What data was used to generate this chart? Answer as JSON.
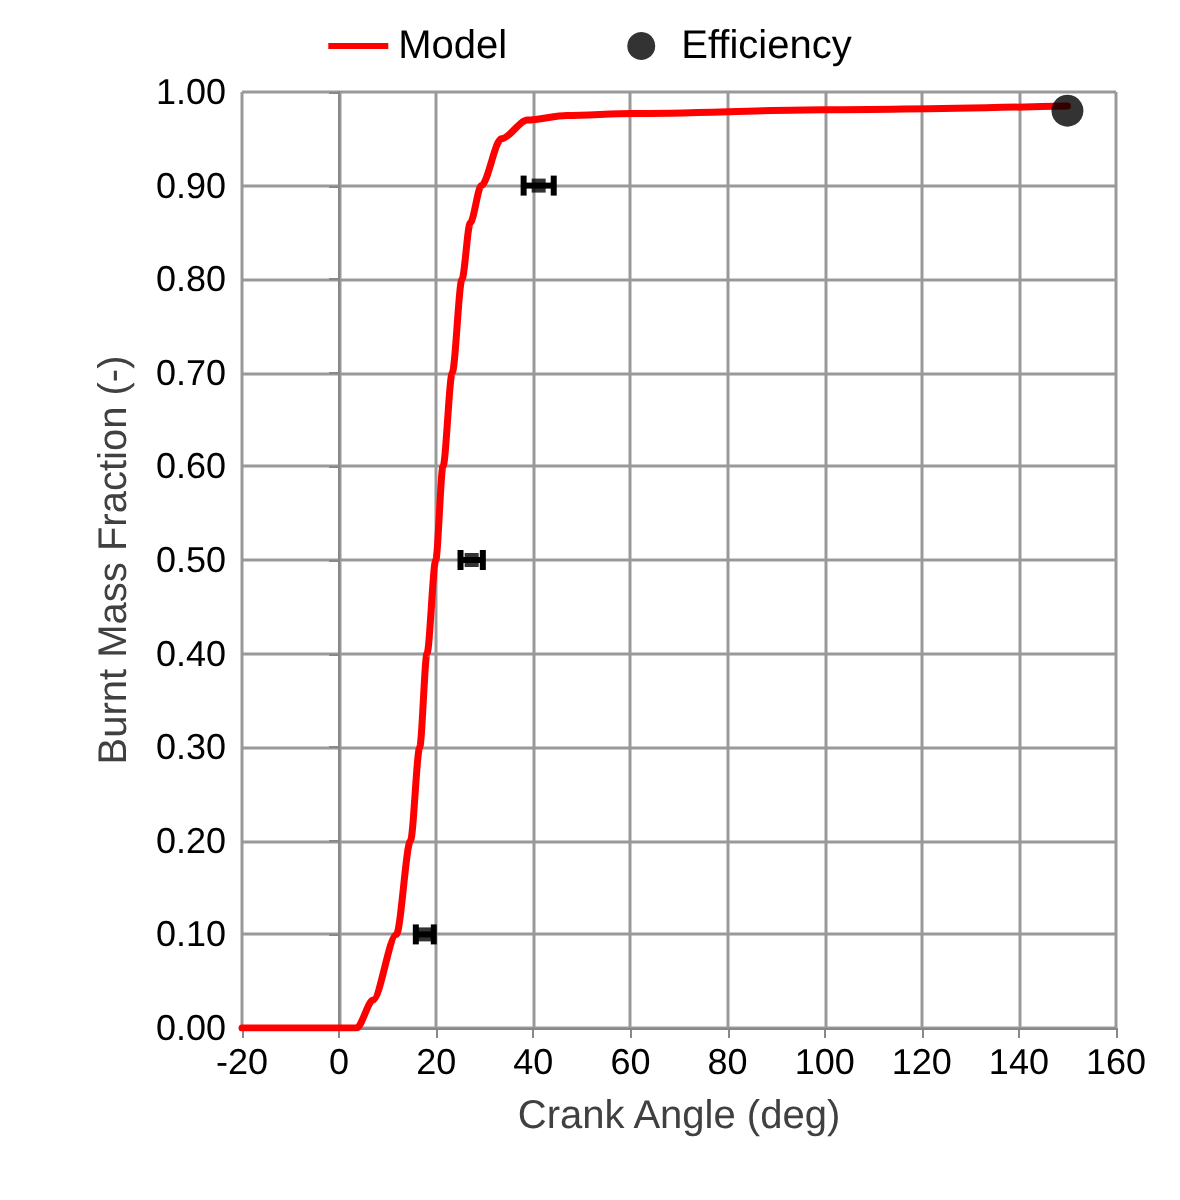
{
  "chart_data": {
    "type": "line",
    "xlabel": "Crank Angle (deg)",
    "ylabel": "Burnt Mass Fraction (-)",
    "xlim": [
      -20,
      160
    ],
    "xticks": [
      -20,
      0,
      20,
      40,
      60,
      80,
      100,
      120,
      140,
      160
    ],
    "ylim": [
      0,
      1
    ],
    "yticks": [
      {
        "value": 0,
        "label": "0.00"
      },
      {
        "value": 0.1,
        "label": "0.10"
      },
      {
        "value": 0.2,
        "label": "0.20"
      },
      {
        "value": 0.3,
        "label": "0.30"
      },
      {
        "value": 0.4,
        "label": "0.40"
      },
      {
        "value": 0.5,
        "label": "0.50"
      },
      {
        "value": 0.6,
        "label": "0.60"
      },
      {
        "value": 0.7,
        "label": "0.70"
      },
      {
        "value": 0.8,
        "label": "0.80"
      },
      {
        "value": 0.9,
        "label": "0.90"
      },
      {
        "value": 1,
        "label": "1.00"
      }
    ],
    "grid": true,
    "legend": "top",
    "series": [
      {
        "name": "Model",
        "type": "line",
        "color": "#ff0000",
        "marker": "none",
        "line_style": "solid",
        "x": [
          -20,
          0,
          3.6,
          7,
          11.8,
          14.7,
          16.6,
          18.1,
          19.9,
          21.4,
          23.3,
          25.3,
          27,
          29.3,
          33.4,
          38.8,
          46.9,
          60.4,
          100,
          150
        ],
        "values": [
          0,
          0,
          0,
          0.03,
          0.1,
          0.2,
          0.3,
          0.4,
          0.5,
          0.6,
          0.7,
          0.8,
          0.86,
          0.9,
          0.95,
          0.97,
          0.975,
          0.977,
          0.981,
          0.985
        ]
      },
      {
        "type": "scatter",
        "color": "#000000",
        "marker": "square",
        "x": [
          17.6,
          27.3,
          41.1
        ],
        "values": [
          0.1,
          0.5,
          0.9
        ],
        "xerrors": [
          [
            15.8,
            19.5
          ],
          [
            25,
            29.6
          ],
          [
            38,
            44.2
          ]
        ]
      },
      {
        "name": "Efficiency",
        "type": "scatter",
        "color": "#000000",
        "marker": "circle",
        "x": [
          150
        ],
        "values": [
          0.98
        ]
      }
    ]
  }
}
